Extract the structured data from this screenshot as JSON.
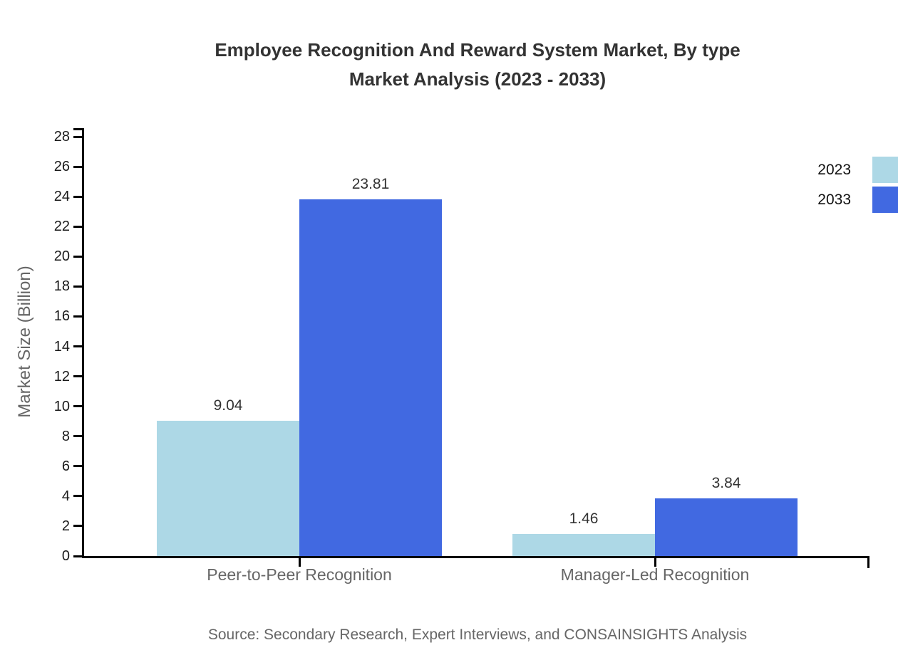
{
  "title": {
    "line1": "Employee Recognition And Reward System Market, By type",
    "line2": "Market Analysis (2023 - 2033)"
  },
  "chart_data": {
    "type": "bar",
    "categories": [
      "Peer-to-Peer Recognition",
      "Manager-Led Recognition"
    ],
    "series": [
      {
        "name": "2023",
        "color": "#ADD8E6",
        "values": [
          9.04,
          1.46
        ]
      },
      {
        "name": "2033",
        "color": "#4169E1",
        "values": [
          23.81,
          3.84
        ]
      }
    ],
    "title": "Employee Recognition And Reward System Market, By type Market Analysis (2023 - 2033)",
    "xlabel": "",
    "ylabel": "Market Size (Billion)",
    "ylim": [
      0,
      28
    ],
    "ytick_step": 2,
    "grid": false,
    "legend_position": "top-right",
    "value_labels": [
      [
        "9.04",
        "1.46"
      ],
      [
        "23.81",
        "3.84"
      ]
    ]
  },
  "source": "Source: Secondary Research, Expert Interviews, and CONSAINSIGHTS Analysis",
  "colors": {
    "axis": "#000000",
    "tick_label": "#1a1a1a",
    "category_label": "#666666",
    "value_label": "#333333",
    "title": "#333333",
    "source": "#666666",
    "legend_label": "#111111",
    "series_2023": "#ADD8E6",
    "series_2033": "#4169E1"
  }
}
